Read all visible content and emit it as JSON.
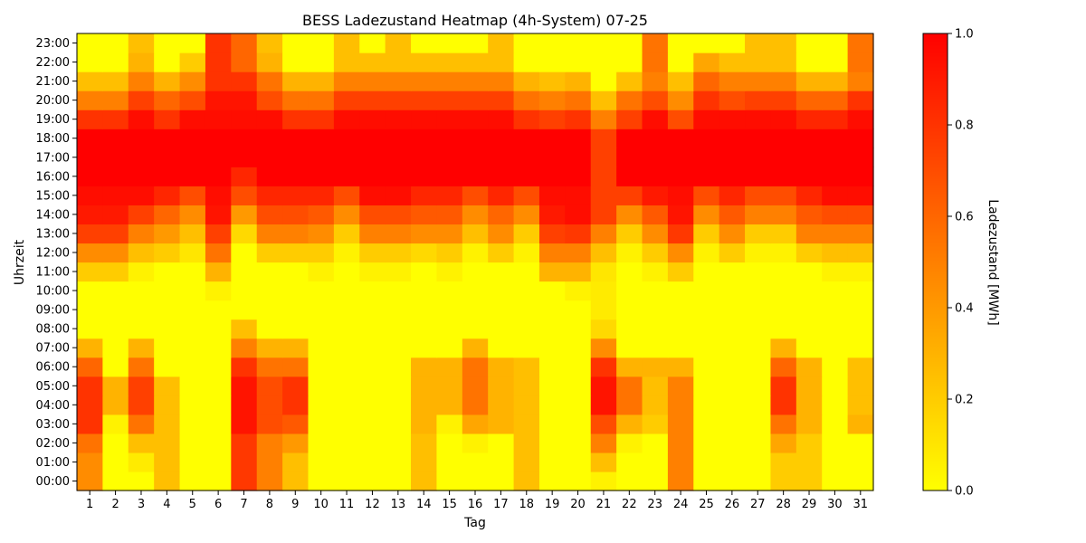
{
  "chart_data": {
    "type": "heatmap",
    "title": "BESS Ladezustand Heatmap (4h-System) 07-25",
    "xlabel": "Tag",
    "ylabel": "Uhrzeit",
    "colorbar_label": "Ladezustand [MWh]",
    "colorbar_ticks": [
      "0.0",
      "0.2",
      "0.4",
      "0.6",
      "0.8",
      "1.0"
    ],
    "vmin": 0.0,
    "vmax": 1.0,
    "colormap": [
      "#ffff00",
      "#ff0000"
    ],
    "days": [
      "1",
      "2",
      "3",
      "4",
      "5",
      "6",
      "7",
      "8",
      "9",
      "10",
      "11",
      "12",
      "13",
      "14",
      "15",
      "16",
      "17",
      "18",
      "19",
      "20",
      "21",
      "22",
      "23",
      "24",
      "25",
      "26",
      "27",
      "28",
      "29",
      "30",
      "31"
    ],
    "hours": [
      "00:00",
      "01:00",
      "02:00",
      "03:00",
      "04:00",
      "05:00",
      "06:00",
      "07:00",
      "08:00",
      "09:00",
      "10:00",
      "11:00",
      "12:00",
      "13:00",
      "14:00",
      "15:00",
      "16:00",
      "17:00",
      "18:00",
      "19:00",
      "20:00",
      "21:00",
      "22:00",
      "23:00"
    ],
    "values": [
      [
        0.45,
        0,
        0,
        0.25,
        0,
        0,
        0.78,
        0.5,
        0.25,
        0,
        0,
        0,
        0,
        0.25,
        0,
        0,
        0,
        0.25,
        0,
        0,
        0.05,
        0,
        0,
        0.5,
        0,
        0,
        0,
        0.2,
        0.2,
        0,
        0
      ],
      [
        0.45,
        0,
        0.08,
        0.25,
        0,
        0,
        0.78,
        0.5,
        0.25,
        0,
        0,
        0,
        0,
        0.25,
        0,
        0,
        0,
        0.25,
        0,
        0,
        0.25,
        0,
        0,
        0.5,
        0,
        0,
        0,
        0.2,
        0.2,
        0,
        0
      ],
      [
        0.55,
        0,
        0.25,
        0.25,
        0,
        0,
        0.78,
        0.5,
        0.4,
        0,
        0,
        0,
        0,
        0.25,
        0,
        0.05,
        0,
        0.25,
        0,
        0,
        0.5,
        0.05,
        0,
        0.5,
        0,
        0,
        0,
        0.35,
        0.2,
        0,
        0
      ],
      [
        0.8,
        0.05,
        0.55,
        0.25,
        0,
        0,
        0.92,
        0.7,
        0.65,
        0,
        0,
        0,
        0,
        0.3,
        0.05,
        0.35,
        0.3,
        0.25,
        0,
        0,
        0.7,
        0.3,
        0.2,
        0.5,
        0,
        0,
        0,
        0.55,
        0.3,
        0,
        0.3
      ],
      [
        0.8,
        0.3,
        0.75,
        0.25,
        0,
        0,
        0.92,
        0.7,
        0.8,
        0,
        0,
        0,
        0,
        0.3,
        0.3,
        0.55,
        0.3,
        0.25,
        0,
        0,
        0.92,
        0.55,
        0.25,
        0.5,
        0,
        0,
        0,
        0.8,
        0.3,
        0,
        0.25
      ],
      [
        0.8,
        0.3,
        0.75,
        0.25,
        0,
        0,
        0.92,
        0.7,
        0.8,
        0,
        0,
        0,
        0,
        0.3,
        0.3,
        0.55,
        0.3,
        0.25,
        0,
        0,
        0.92,
        0.55,
        0.25,
        0.5,
        0,
        0,
        0,
        0.8,
        0.3,
        0,
        0.25
      ],
      [
        0.6,
        0,
        0.55,
        0,
        0,
        0,
        0.8,
        0.55,
        0.55,
        0,
        0,
        0,
        0,
        0.3,
        0.3,
        0.55,
        0.3,
        0.25,
        0,
        0,
        0.8,
        0.3,
        0.3,
        0.3,
        0,
        0,
        0,
        0.6,
        0.3,
        0,
        0.25
      ],
      [
        0.3,
        0,
        0.3,
        0,
        0,
        0,
        0.5,
        0.3,
        0.3,
        0,
        0,
        0,
        0,
        0,
        0,
        0.3,
        0,
        0,
        0,
        0,
        0.45,
        0,
        0,
        0,
        0,
        0,
        0,
        0.3,
        0,
        0,
        0
      ],
      [
        0,
        0,
        0,
        0,
        0,
        0,
        0.25,
        0,
        0,
        0,
        0,
        0,
        0,
        0,
        0,
        0,
        0,
        0,
        0,
        0,
        0.15,
        0,
        0,
        0,
        0,
        0,
        0,
        0,
        0,
        0,
        0
      ],
      [
        0,
        0,
        0,
        0,
        0,
        0,
        0,
        0,
        0,
        0,
        0,
        0,
        0,
        0,
        0,
        0,
        0,
        0,
        0,
        0,
        0.08,
        0,
        0,
        0,
        0,
        0,
        0,
        0,
        0,
        0,
        0
      ],
      [
        0,
        0,
        0,
        0,
        0,
        0.05,
        0,
        0,
        0,
        0,
        0,
        0,
        0,
        0,
        0,
        0,
        0,
        0,
        0,
        0.05,
        0.08,
        0,
        0,
        0,
        0,
        0,
        0,
        0,
        0,
        0,
        0
      ],
      [
        0.2,
        0.2,
        0.05,
        0,
        0,
        0.3,
        0,
        0,
        0,
        0.05,
        0,
        0.05,
        0.05,
        0,
        0.05,
        0,
        0,
        0,
        0.3,
        0.3,
        0.1,
        0,
        0.05,
        0.2,
        0,
        0,
        0,
        0,
        0,
        0.05,
        0.05
      ],
      [
        0.45,
        0.45,
        0.25,
        0.2,
        0.1,
        0.55,
        0,
        0.2,
        0.2,
        0.2,
        0.05,
        0.2,
        0.2,
        0.15,
        0.2,
        0.05,
        0.2,
        0.05,
        0.5,
        0.5,
        0.25,
        0.05,
        0.2,
        0.45,
        0.05,
        0.2,
        0.05,
        0.05,
        0.2,
        0.25,
        0.25
      ],
      [
        0.75,
        0.75,
        0.5,
        0.4,
        0.25,
        0.75,
        0.15,
        0.5,
        0.5,
        0.45,
        0.2,
        0.5,
        0.5,
        0.45,
        0.45,
        0.25,
        0.45,
        0.2,
        0.75,
        0.78,
        0.5,
        0.2,
        0.45,
        0.78,
        0.2,
        0.45,
        0.2,
        0.2,
        0.5,
        0.5,
        0.5
      ],
      [
        0.9,
        0.9,
        0.75,
        0.6,
        0.45,
        0.92,
        0.4,
        0.7,
        0.7,
        0.65,
        0.45,
        0.7,
        0.7,
        0.65,
        0.65,
        0.45,
        0.6,
        0.45,
        0.9,
        0.95,
        0.75,
        0.45,
        0.65,
        0.92,
        0.45,
        0.65,
        0.5,
        0.5,
        0.65,
        0.7,
        0.7
      ],
      [
        0.95,
        0.95,
        0.95,
        0.85,
        0.7,
        0.95,
        0.7,
        0.85,
        0.85,
        0.85,
        0.7,
        0.95,
        0.95,
        0.85,
        0.85,
        0.7,
        0.85,
        0.7,
        0.95,
        0.95,
        0.75,
        0.75,
        0.9,
        0.95,
        0.7,
        0.85,
        0.7,
        0.7,
        0.85,
        0.95,
        0.95
      ],
      [
        1,
        1,
        1,
        1,
        1,
        1,
        0.85,
        1,
        1,
        1,
        1,
        1,
        1,
        1,
        1,
        1,
        1,
        1,
        1,
        1,
        0.75,
        1,
        1,
        1,
        1,
        1,
        1,
        1,
        1,
        1,
        1
      ],
      [
        1,
        1,
        1,
        1,
        1,
        1,
        1,
        1,
        1,
        1,
        1,
        1,
        1,
        1,
        1,
        1,
        1,
        1,
        1,
        1,
        0.75,
        1,
        1,
        1,
        1,
        1,
        1,
        1,
        1,
        1,
        1
      ],
      [
        1,
        1,
        1,
        1,
        1,
        1,
        1,
        1,
        1,
        1,
        1,
        1,
        1,
        1,
        1,
        1,
        1,
        1,
        1,
        1,
        0.75,
        1,
        1,
        1,
        1,
        1,
        1,
        1,
        1,
        1,
        1
      ],
      [
        0.8,
        0.8,
        0.95,
        0.8,
        0.95,
        0.95,
        0.95,
        0.95,
        0.8,
        0.8,
        0.95,
        0.95,
        0.95,
        0.95,
        0.95,
        0.95,
        0.95,
        0.8,
        0.75,
        0.8,
        0.5,
        0.75,
        0.95,
        0.7,
        0.95,
        0.95,
        0.95,
        0.95,
        0.85,
        0.85,
        0.95
      ],
      [
        0.5,
        0.5,
        0.75,
        0.6,
        0.7,
        0.92,
        0.92,
        0.7,
        0.55,
        0.55,
        0.75,
        0.75,
        0.75,
        0.75,
        0.75,
        0.75,
        0.75,
        0.55,
        0.5,
        0.55,
        0.25,
        0.55,
        0.7,
        0.45,
        0.8,
        0.7,
        0.75,
        0.75,
        0.6,
        0.6,
        0.8
      ],
      [
        0.25,
        0.25,
        0.5,
        0.3,
        0.45,
        0.8,
        0.8,
        0.55,
        0.3,
        0.3,
        0.5,
        0.5,
        0.5,
        0.5,
        0.5,
        0.5,
        0.5,
        0.3,
        0.25,
        0.3,
        0,
        0.25,
        0.5,
        0.25,
        0.6,
        0.5,
        0.5,
        0.5,
        0.3,
        0.3,
        0.5
      ],
      [
        0,
        0,
        0.3,
        0,
        0.2,
        0.8,
        0.6,
        0.3,
        0,
        0,
        0.25,
        0.25,
        0.25,
        0.25,
        0.25,
        0.25,
        0.25,
        0,
        0,
        0,
        0,
        0,
        0.55,
        0,
        0.35,
        0.25,
        0.25,
        0.25,
        0,
        0,
        0.55
      ],
      [
        0,
        0,
        0.25,
        0,
        0,
        0.8,
        0.6,
        0.25,
        0,
        0,
        0.25,
        0,
        0.25,
        0,
        0,
        0,
        0.25,
        0,
        0,
        0,
        0,
        0,
        0.55,
        0,
        0,
        0,
        0.25,
        0.25,
        0,
        0,
        0.55
      ]
    ]
  }
}
